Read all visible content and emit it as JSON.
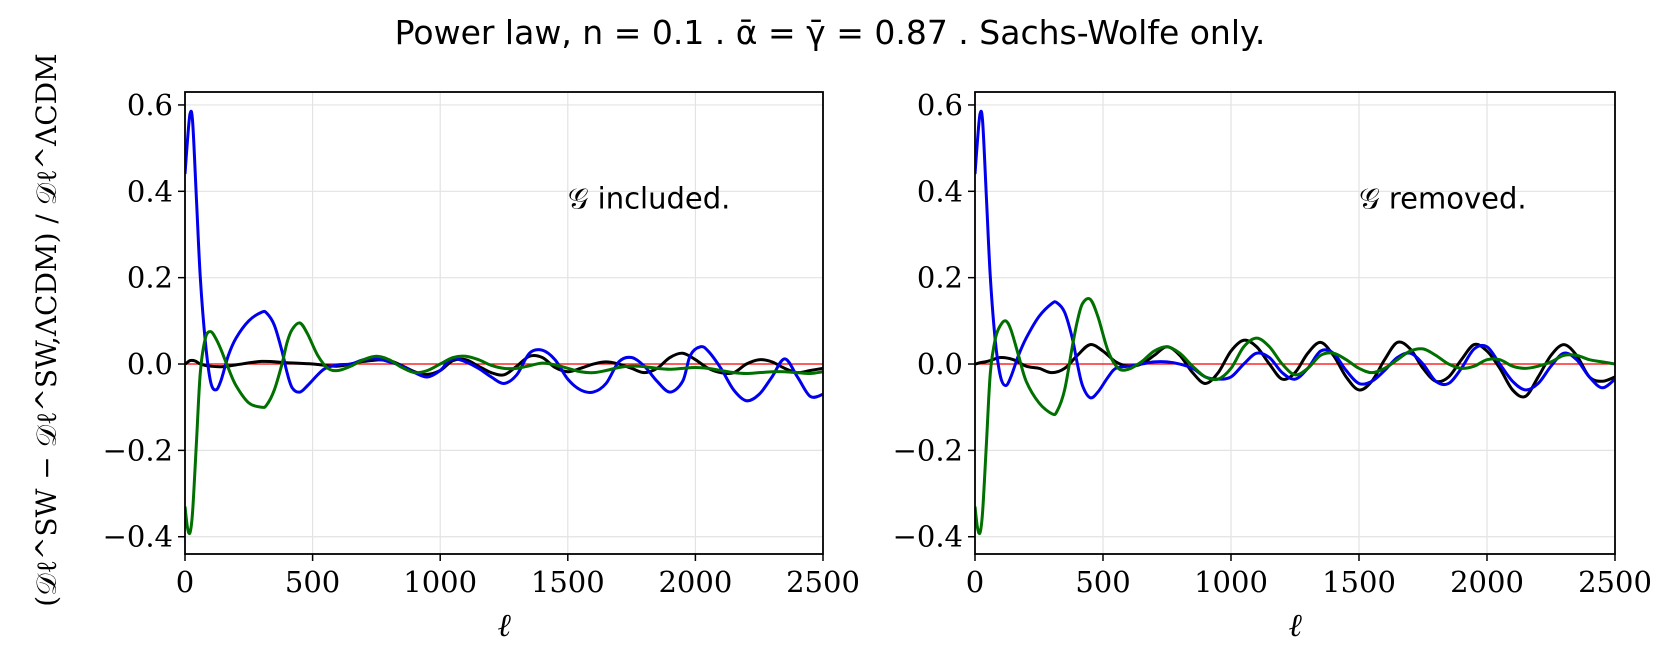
{
  "figure_title": "Power law, n = 0.1 .  ᾱ = γ̄ = 0.87 .  Sachs-Wolfe only.",
  "y_label": "(𝒟ℓ^SW − 𝒟ℓ^SW,ΛCDM) / 𝒟ℓ^ΛCDM",
  "chart_data": [
    {
      "type": "line",
      "panel": "left",
      "annotation": "𝒢 included.",
      "xlabel": "ℓ",
      "xlim": [
        0,
        2500
      ],
      "ylim": [
        -0.44,
        0.63
      ],
      "xticks": [
        0,
        500,
        1000,
        1500,
        2000,
        2500
      ],
      "yticks": [
        0.6,
        0.4,
        0.2,
        0.0,
        -0.2,
        -0.4
      ],
      "xtick_labels": [
        "0",
        "500",
        "1000",
        "1500",
        "2000",
        "2500"
      ],
      "ytick_labels": [
        "0.6",
        "0.4",
        "0.2",
        "0.0",
        "−0.2",
        "−0.4"
      ],
      "grid": true,
      "reference_line": {
        "y": 0.0,
        "color": "#ff0000"
      },
      "series": [
        {
          "name": "black",
          "color": "#000000",
          "x": [
            2,
            20,
            40,
            60,
            100,
            150,
            200,
            300,
            400,
            500,
            600,
            700,
            800,
            900,
            950,
            1000,
            1050,
            1100,
            1150,
            1200,
            1250,
            1300,
            1350,
            1400,
            1450,
            1500,
            1550,
            1600,
            1650,
            1700,
            1750,
            1800,
            1850,
            1900,
            1950,
            2000,
            2050,
            2100,
            2150,
            2200,
            2250,
            2300,
            2350,
            2400,
            2450,
            2500
          ],
          "y": [
            0.0,
            0.008,
            0.007,
            0.0,
            -0.005,
            -0.006,
            -0.002,
            0.006,
            0.003,
            0.0,
            -0.005,
            0.006,
            0.008,
            -0.018,
            -0.024,
            -0.015,
            0.008,
            0.01,
            -0.005,
            -0.02,
            -0.025,
            -0.005,
            0.018,
            0.015,
            -0.008,
            -0.018,
            -0.01,
            0.0,
            0.005,
            0.0,
            -0.01,
            -0.02,
            -0.01,
            0.015,
            0.025,
            0.01,
            -0.01,
            -0.02,
            -0.02,
            0.0,
            0.01,
            0.005,
            -0.01,
            -0.02,
            -0.015,
            -0.01
          ]
        },
        {
          "name": "blue",
          "color": "#0000ee",
          "x": [
            0,
            10,
            20,
            30,
            45,
            60,
            80,
            100,
            120,
            140,
            170,
            200,
            250,
            300,
            320,
            350,
            380,
            400,
            420,
            450,
            480,
            520,
            550,
            600,
            650,
            700,
            750,
            800,
            850,
            900,
            950,
            1000,
            1030,
            1060,
            1100,
            1150,
            1200,
            1250,
            1300,
            1350,
            1400,
            1450,
            1500,
            1550,
            1600,
            1650,
            1700,
            1750,
            1800,
            1850,
            1900,
            1950,
            1980,
            2020,
            2050,
            2100,
            2150,
            2200,
            2250,
            2300,
            2350,
            2400,
            2450,
            2500
          ],
          "y": [
            0.44,
            0.52,
            0.58,
            0.56,
            0.38,
            0.2,
            0.05,
            -0.04,
            -0.06,
            -0.04,
            0.02,
            0.06,
            0.1,
            0.12,
            0.118,
            0.09,
            0.03,
            -0.02,
            -0.055,
            -0.065,
            -0.05,
            -0.025,
            -0.01,
            -0.002,
            0.0,
            0.01,
            0.012,
            0.005,
            -0.005,
            -0.02,
            -0.03,
            -0.015,
            0.005,
            0.012,
            0.005,
            -0.01,
            -0.03,
            -0.045,
            -0.025,
            0.025,
            0.032,
            0.01,
            -0.035,
            -0.06,
            -0.065,
            -0.045,
            0.005,
            0.015,
            -0.005,
            -0.04,
            -0.065,
            -0.04,
            0.02,
            0.04,
            0.03,
            -0.01,
            -0.06,
            -0.085,
            -0.07,
            -0.03,
            0.012,
            -0.03,
            -0.075,
            -0.07
          ]
        },
        {
          "name": "green",
          "color": "#007000",
          "x": [
            0,
            10,
            20,
            30,
            45,
            60,
            80,
            100,
            120,
            140,
            170,
            200,
            250,
            300,
            320,
            350,
            380,
            400,
            420,
            450,
            480,
            520,
            560,
            600,
            650,
            700,
            750,
            800,
            850,
            900,
            950,
            1000,
            1050,
            1100,
            1150,
            1200,
            1250,
            1300,
            1350,
            1400,
            1450,
            1500,
            1550,
            1600,
            1650,
            1700,
            1750,
            1800,
            1850,
            1900,
            1950,
            2000,
            2050,
            2100,
            2150,
            2200,
            2250,
            2300,
            2350,
            2400,
            2450,
            2500
          ],
          "y": [
            -0.33,
            -0.38,
            -0.39,
            -0.34,
            -0.18,
            -0.02,
            0.06,
            0.075,
            0.06,
            0.035,
            -0.01,
            -0.05,
            -0.09,
            -0.1,
            -0.095,
            -0.06,
            0.0,
            0.05,
            0.08,
            0.095,
            0.07,
            0.02,
            -0.01,
            -0.015,
            -0.005,
            0.01,
            0.018,
            0.01,
            -0.008,
            -0.02,
            -0.015,
            0.0,
            0.015,
            0.018,
            0.01,
            -0.003,
            -0.01,
            -0.01,
            -0.004,
            0.002,
            -0.002,
            -0.01,
            -0.018,
            -0.02,
            -0.015,
            -0.008,
            -0.005,
            -0.006,
            -0.01,
            -0.012,
            -0.01,
            -0.008,
            -0.01,
            -0.015,
            -0.02,
            -0.022,
            -0.02,
            -0.018,
            -0.018,
            -0.02,
            -0.022,
            -0.018
          ]
        }
      ]
    },
    {
      "type": "line",
      "panel": "right",
      "annotation": "𝒢 removed.",
      "xlabel": "ℓ",
      "xlim": [
        0,
        2500
      ],
      "ylim": [
        -0.44,
        0.63
      ],
      "xticks": [
        0,
        500,
        1000,
        1500,
        2000,
        2500
      ],
      "yticks": [
        0.6,
        0.4,
        0.2,
        0.0,
        -0.2,
        -0.4
      ],
      "xtick_labels": [
        "0",
        "500",
        "1000",
        "1500",
        "2000",
        "2500"
      ],
      "ytick_labels": [
        "0.6",
        "0.4",
        "0.2",
        "0.0",
        "−0.2",
        "−0.4"
      ],
      "grid": true,
      "reference_line": {
        "y": 0.0,
        "color": "#ff0000"
      },
      "series": [
        {
          "name": "black",
          "color": "#000000",
          "x": [
            2,
            20,
            40,
            60,
            100,
            150,
            200,
            250,
            300,
            350,
            400,
            450,
            500,
            550,
            600,
            650,
            700,
            750,
            800,
            850,
            900,
            950,
            1000,
            1050,
            1100,
            1150,
            1200,
            1250,
            1300,
            1350,
            1400,
            1450,
            1500,
            1550,
            1600,
            1650,
            1700,
            1750,
            1800,
            1850,
            1900,
            1950,
            2000,
            2050,
            2100,
            2150,
            2200,
            2250,
            2300,
            2350,
            2400,
            2450,
            2500
          ],
          "y": [
            0.0,
            0.003,
            0.005,
            0.008,
            0.015,
            0.01,
            -0.005,
            -0.01,
            -0.02,
            -0.01,
            0.02,
            0.045,
            0.03,
            0.005,
            -0.005,
            0.0,
            0.02,
            0.04,
            0.02,
            -0.02,
            -0.045,
            -0.02,
            0.03,
            0.055,
            0.04,
            0.0,
            -0.035,
            -0.02,
            0.025,
            0.05,
            0.02,
            -0.03,
            -0.06,
            -0.04,
            0.01,
            0.05,
            0.035,
            -0.01,
            -0.04,
            -0.03,
            0.01,
            0.045,
            0.03,
            -0.01,
            -0.06,
            -0.075,
            -0.03,
            0.02,
            0.045,
            0.02,
            -0.03,
            -0.04,
            -0.03
          ]
        },
        {
          "name": "blue",
          "color": "#0000ee",
          "x": [
            0,
            10,
            20,
            30,
            45,
            60,
            80,
            100,
            120,
            140,
            170,
            200,
            250,
            300,
            320,
            350,
            380,
            400,
            420,
            450,
            480,
            520,
            550,
            600,
            650,
            700,
            750,
            800,
            850,
            900,
            950,
            1000,
            1050,
            1100,
            1150,
            1200,
            1250,
            1300,
            1350,
            1400,
            1450,
            1500,
            1550,
            1600,
            1650,
            1700,
            1750,
            1800,
            1850,
            1900,
            1950,
            2000,
            2050,
            2100,
            2150,
            2200,
            2250,
            2300,
            2350,
            2400,
            2450,
            2500
          ],
          "y": [
            0.44,
            0.52,
            0.58,
            0.56,
            0.38,
            0.2,
            0.05,
            -0.03,
            -0.05,
            -0.03,
            0.02,
            0.06,
            0.11,
            0.14,
            0.142,
            0.12,
            0.06,
            0.0,
            -0.05,
            -0.078,
            -0.065,
            -0.03,
            -0.01,
            -0.005,
            0.0,
            0.005,
            0.005,
            0.0,
            -0.01,
            -0.03,
            -0.035,
            -0.03,
            0.0,
            0.025,
            0.015,
            -0.02,
            -0.035,
            -0.01,
            0.03,
            0.025,
            -0.015,
            -0.045,
            -0.04,
            -0.015,
            0.015,
            0.025,
            0.0,
            -0.04,
            -0.045,
            -0.01,
            0.035,
            0.04,
            0.0,
            -0.04,
            -0.06,
            -0.045,
            -0.005,
            0.025,
            0.01,
            -0.03,
            -0.055,
            -0.035
          ]
        },
        {
          "name": "green",
          "color": "#007000",
          "x": [
            0,
            10,
            20,
            30,
            45,
            60,
            80,
            100,
            120,
            140,
            170,
            200,
            250,
            300,
            320,
            350,
            380,
            400,
            420,
            450,
            480,
            520,
            560,
            600,
            650,
            700,
            750,
            800,
            850,
            900,
            950,
            1000,
            1050,
            1100,
            1150,
            1200,
            1250,
            1300,
            1350,
            1400,
            1450,
            1500,
            1550,
            1600,
            1650,
            1700,
            1750,
            1800,
            1850,
            1900,
            1950,
            2000,
            2050,
            2100,
            2150,
            2200,
            2250,
            2300,
            2350,
            2400,
            2450,
            2500
          ],
          "y": [
            -0.33,
            -0.38,
            -0.39,
            -0.34,
            -0.18,
            -0.02,
            0.06,
            0.09,
            0.1,
            0.08,
            0.02,
            -0.04,
            -0.09,
            -0.115,
            -0.11,
            -0.06,
            0.04,
            0.1,
            0.14,
            0.15,
            0.11,
            0.03,
            -0.01,
            -0.012,
            0.005,
            0.03,
            0.04,
            0.025,
            -0.005,
            -0.03,
            -0.035,
            -0.01,
            0.04,
            0.06,
            0.04,
            0.0,
            -0.025,
            -0.01,
            0.02,
            0.025,
            0.01,
            -0.01,
            -0.02,
            -0.01,
            0.01,
            0.03,
            0.035,
            0.02,
            0.0,
            -0.01,
            -0.005,
            0.01,
            0.01,
            -0.005,
            -0.01,
            -0.005,
            0.005,
            0.02,
            0.02,
            0.01,
            0.005,
            0.0
          ]
        }
      ]
    }
  ]
}
